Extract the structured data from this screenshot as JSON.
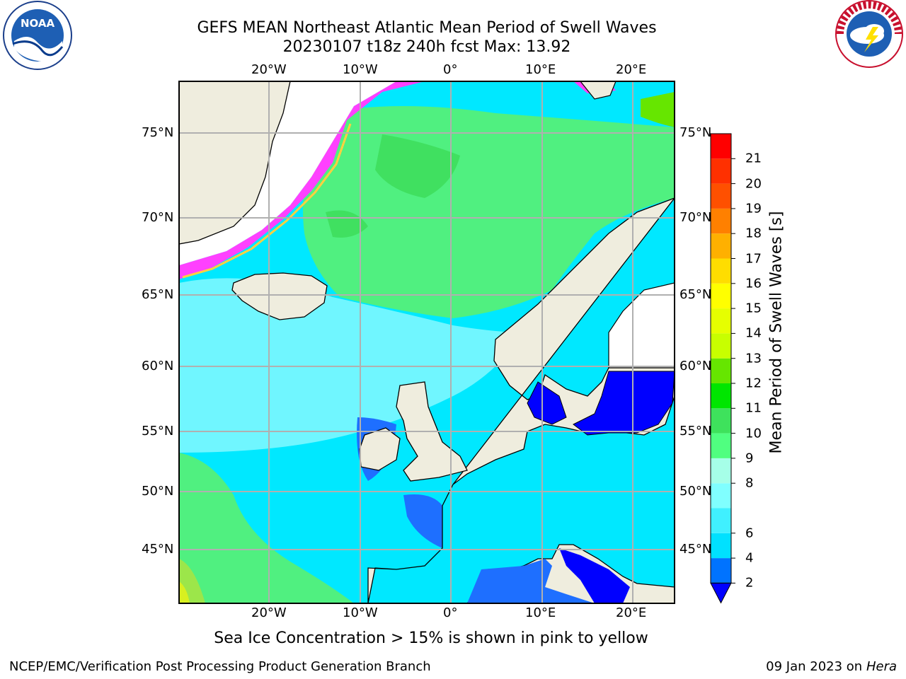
{
  "title": {
    "line1": "GEFS MEAN Northeast Atlantic Mean Period of Swell Waves",
    "line2": "20230107 t18z 240h fcst   Max: 13.92"
  },
  "logos": {
    "left": {
      "text": "NOAA",
      "ring_text": "NATIONAL OCEANIC AND ATMOSPHERIC ADMINISTRATION · U.S. DEPARTMENT OF COMMERCE"
    },
    "right": {
      "ring_text": "NATIONAL WEATHER SERVICE"
    }
  },
  "map": {
    "lon_labels": [
      "20°W",
      "10°W",
      "0°",
      "10°E",
      "20°E"
    ],
    "lat_labels": [
      "75°N",
      "70°N",
      "65°N",
      "60°N",
      "55°N",
      "50°N",
      "45°N"
    ],
    "colors": {
      "land": "#efedde",
      "coast": "#000000",
      "grid": "#b0b0b0"
    }
  },
  "colorbar": {
    "title": "Mean Period of Swell Waves [s]",
    "ticks": [
      "2",
      "4",
      "6",
      "7",
      "8",
      "9",
      "10",
      "11",
      "12",
      "13",
      "14",
      "15",
      "16",
      "17",
      "18",
      "19",
      "20",
      "21"
    ],
    "tick_values": [
      2,
      4,
      6,
      7,
      8,
      9,
      10,
      11,
      12,
      13,
      14,
      15,
      16,
      17,
      18,
      19,
      20,
      21
    ],
    "display_ticks": [
      "2",
      "4",
      "6",
      "8",
      "9",
      "10",
      "11",
      "12",
      "13",
      "14",
      "15",
      "16",
      "17",
      "18",
      "19",
      "20",
      "21"
    ],
    "colors": [
      "#0073ff",
      "#00e1ff",
      "#40f0ff",
      "#80ffff",
      "#a6ffe8",
      "#50ff80",
      "#3ee25c",
      "#00e600",
      "#66e600",
      "#c8ff00",
      "#e6ff00",
      "#ffff00",
      "#ffdd00",
      "#ffb000",
      "#ff8000",
      "#ff5000",
      "#ff3000",
      "#ff0000"
    ],
    "extend_color": "#0000ff"
  },
  "caption": "Sea Ice Concentration > 15% is shown in pink to yellow",
  "footer": {
    "left": "NCEP/EMC/Verification Post Processing Product Generation Branch",
    "right_prefix": "09 Jan 2023 on ",
    "right_host": "Hera"
  }
}
